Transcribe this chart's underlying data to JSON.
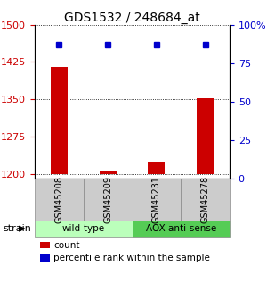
{
  "title": "GDS1532 / 248684_at",
  "samples": [
    "GSM45208",
    "GSM45209",
    "GSM45231",
    "GSM45278"
  ],
  "counts": [
    1415,
    1207,
    1222,
    1352
  ],
  "bar_baseline": 1200,
  "percentile_ranks": [
    87,
    87,
    87,
    87
  ],
  "groups": [
    {
      "label": "wild-type",
      "indices": [
        0,
        1
      ],
      "color": "#bbffbb"
    },
    {
      "label": "AOX anti-sense",
      "indices": [
        2,
        3
      ],
      "color": "#55cc55"
    }
  ],
  "ylim_left": [
    1190,
    1500
  ],
  "ylim_right": [
    0,
    100
  ],
  "yticks_left": [
    1200,
    1275,
    1350,
    1425,
    1500
  ],
  "yticks_right": [
    0,
    25,
    50,
    75,
    100
  ],
  "ytick_labels_left": [
    "1200",
    "1275",
    "1350",
    "1425",
    "1500"
  ],
  "ytick_labels_right": [
    "0",
    "25",
    "50",
    "75",
    "100%"
  ],
  "bar_color": "#cc0000",
  "marker_color": "#0000cc",
  "bar_width": 0.35,
  "strain_label": "strain",
  "legend_count_label": "count",
  "legend_pct_label": "percentile rank within the sample",
  "sample_box_color": "#cccccc",
  "xlim": [
    -0.5,
    3.5
  ]
}
